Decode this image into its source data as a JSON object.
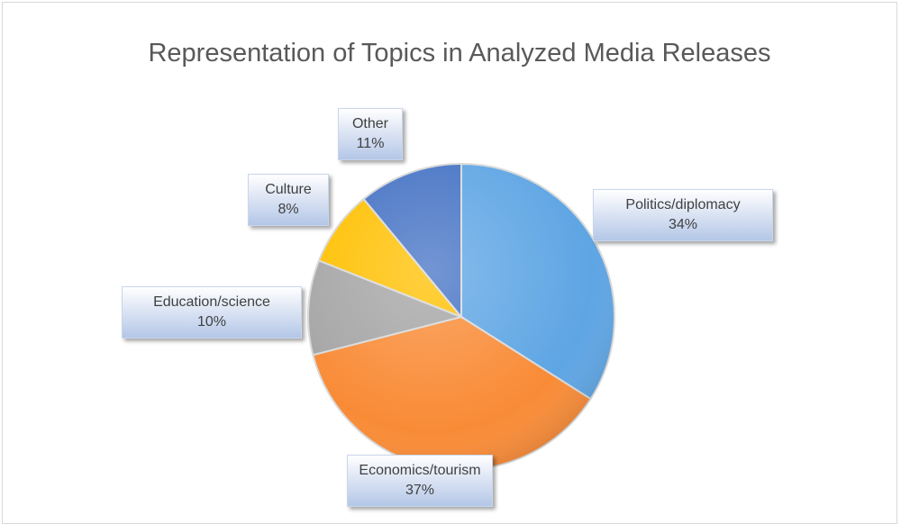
{
  "chart_data": {
    "type": "pie",
    "title": "Representation of Topics in Analyzed Media Releases",
    "categories": [
      "Politics/diplomacy",
      "Economics/tourism",
      "Education/science",
      "Culture",
      "Other"
    ],
    "values": [
      34,
      37,
      10,
      8,
      11
    ],
    "value_labels": [
      "34%",
      "37%",
      "10%",
      "8%",
      "11%"
    ],
    "colors": [
      "#5ea5e4",
      "#f98b36",
      "#a5a5a5",
      "#ffc000",
      "#4472c4"
    ]
  }
}
